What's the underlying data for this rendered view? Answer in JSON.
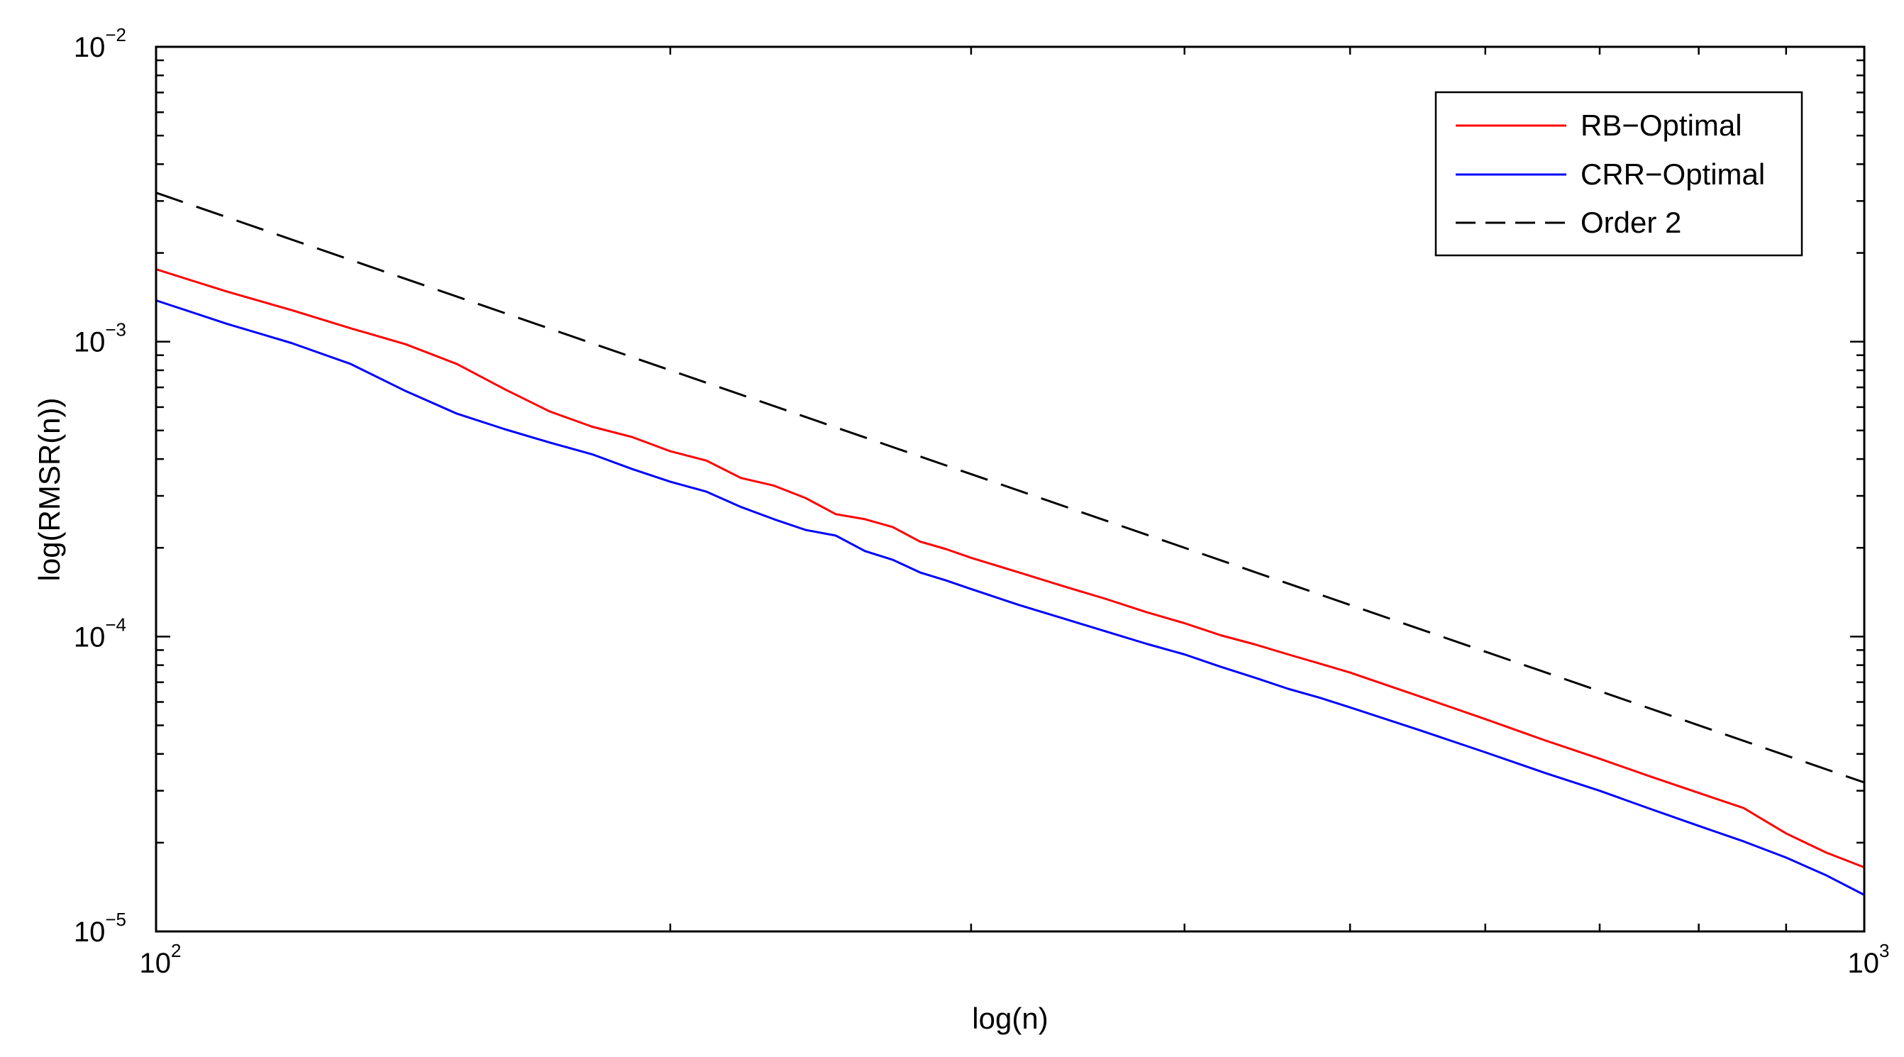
{
  "chart_data": {
    "type": "line",
    "title": "",
    "xlabel": "log(n)",
    "ylabel": "log(RMSR(n))",
    "xscale": "log",
    "yscale": "log",
    "xlim": [
      100,
      1000
    ],
    "ylim": [
      1e-05,
      0.01
    ],
    "x_ticks": [
      {
        "base": "10",
        "exp": "2"
      },
      {
        "base": "10",
        "exp": "3"
      }
    ],
    "y_ticks": [
      {
        "base": "10",
        "exp": "−5"
      },
      {
        "base": "10",
        "exp": "−4"
      },
      {
        "base": "10",
        "exp": "−3"
      },
      {
        "base": "10",
        "exp": "−2"
      }
    ],
    "grid": false,
    "legend_position": "top-right",
    "series": [
      {
        "name": "RB−Optimal",
        "color": "#ff0000",
        "dash": "solid",
        "x": [
          100,
          110,
          120,
          130,
          140,
          150,
          160,
          170,
          180,
          190,
          200,
          210,
          220,
          230,
          240,
          250,
          260,
          270,
          280,
          290,
          300,
          320,
          340,
          360,
          380,
          400,
          420,
          440,
          460,
          480,
          500,
          550,
          600,
          650,
          700,
          750,
          800,
          850,
          900,
          950,
          1000
        ],
        "values": [
          0.00176,
          0.00148,
          0.00128,
          0.00111,
          0.00098,
          0.00084,
          0.00069,
          0.00058,
          0.000515,
          0.000475,
          0.000425,
          0.000395,
          0.000345,
          0.000325,
          0.000295,
          0.00026,
          0.00025,
          0.000235,
          0.00021,
          0.000198,
          0.000185,
          0.000165,
          0.000148,
          0.000134,
          0.000121,
          0.000111,
          0.000101,
          9.4e-05,
          8.7e-05,
          8.1e-05,
          7.55e-05,
          6.25e-05,
          5.25e-05,
          4.45e-05,
          3.85e-05,
          3.35e-05,
          2.95e-05,
          2.62e-05,
          2.15e-05,
          1.85e-05,
          1.65e-05
        ]
      },
      {
        "name": "CRR−Optimal",
        "color": "#0000ff",
        "dash": "solid",
        "x": [
          100,
          110,
          120,
          130,
          140,
          150,
          160,
          170,
          180,
          190,
          200,
          210,
          220,
          230,
          240,
          250,
          260,
          270,
          280,
          290,
          300,
          320,
          340,
          360,
          380,
          400,
          420,
          440,
          460,
          480,
          500,
          550,
          600,
          650,
          700,
          750,
          800,
          850,
          900,
          950,
          1000
        ],
        "values": [
          0.00138,
          0.00115,
          0.00099,
          0.00084,
          0.00068,
          0.00057,
          0.000505,
          0.000455,
          0.000415,
          0.00037,
          0.000335,
          0.00031,
          0.000275,
          0.00025,
          0.00023,
          0.00022,
          0.000195,
          0.000182,
          0.000165,
          0.000155,
          0.000145,
          0.000128,
          0.000115,
          0.000104,
          9.45e-05,
          8.7e-05,
          7.9e-05,
          7.25e-05,
          6.65e-05,
          6.2e-05,
          5.75e-05,
          4.8e-05,
          4.05e-05,
          3.45e-05,
          3e-05,
          2.6e-05,
          2.28e-05,
          2.02e-05,
          1.78e-05,
          1.55e-05,
          1.33e-05
        ]
      },
      {
        "name": "Order 2",
        "color": "#000000",
        "dash": "dashed",
        "x": [
          100,
          1000
        ],
        "values": [
          0.0032,
          3.2e-05
        ]
      }
    ]
  }
}
